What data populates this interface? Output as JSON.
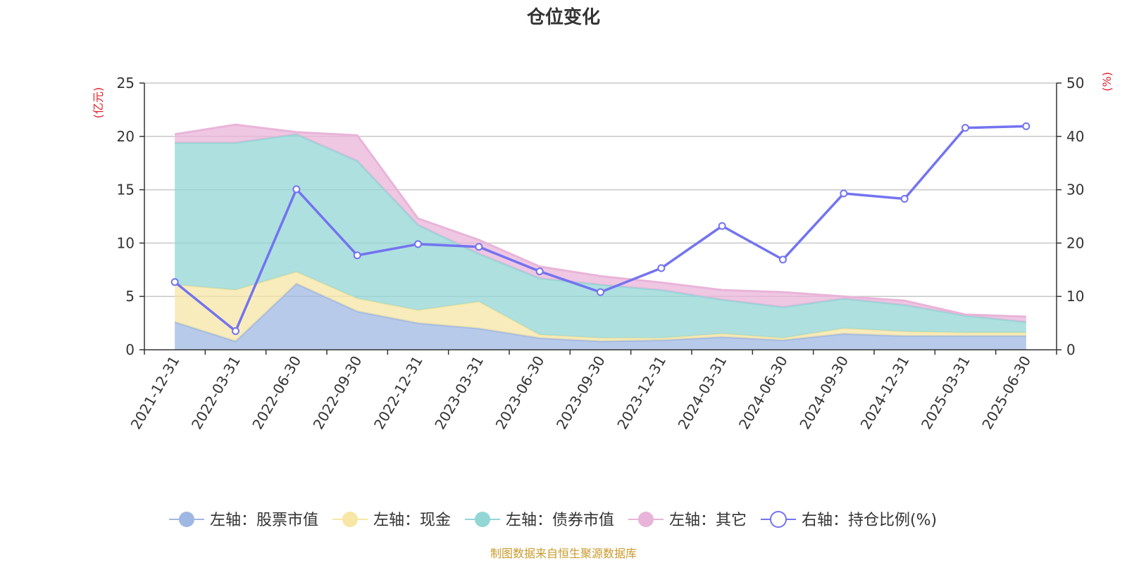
{
  "chart_data": {
    "type": "area",
    "title": "仓位变化",
    "categories": [
      "2021-12-31",
      "2022-03-31",
      "2022-06-30",
      "2022-09-30",
      "2022-12-31",
      "2023-03-31",
      "2023-06-30",
      "2023-09-30",
      "2023-12-31",
      "2024-03-31",
      "2024-06-30",
      "2024-09-30",
      "2024-12-31",
      "2025-03-31",
      "2025-06-30"
    ],
    "left_axis": {
      "unit": "(亿元)",
      "ylim": [
        0,
        25
      ],
      "ticks": [
        "0",
        "5",
        "10",
        "15",
        "20",
        "25"
      ]
    },
    "right_axis": {
      "unit": "(%)",
      "ylim": [
        0,
        50
      ],
      "ticks": [
        "0",
        "10",
        "20",
        "30",
        "40",
        "50"
      ]
    },
    "stacked": true,
    "series": [
      {
        "name": "左轴：股票市值",
        "axis": "left",
        "type": "area",
        "color": "#9fb8e3",
        "values": [
          2.6,
          0.8,
          6.2,
          3.6,
          2.5,
          2.0,
          1.1,
          0.8,
          0.9,
          1.2,
          0.9,
          1.5,
          1.3,
          1.3,
          1.3
        ]
      },
      {
        "name": "左轴：现金",
        "axis": "left",
        "type": "area",
        "color": "#f7e6a6",
        "values": [
          3.5,
          4.8,
          1.1,
          1.2,
          1.2,
          2.5,
          0.3,
          0.3,
          0.2,
          0.3,
          0.2,
          0.5,
          0.4,
          0.3,
          0.3
        ]
      },
      {
        "name": "左轴：债券市值",
        "axis": "left",
        "type": "area",
        "color": "#93d6d6",
        "values": [
          13.3,
          13.8,
          12.9,
          12.9,
          8.0,
          4.5,
          5.3,
          5.0,
          4.5,
          3.2,
          2.9,
          2.8,
          2.5,
          1.6,
          1.0
        ]
      },
      {
        "name": "左轴：其它",
        "axis": "left",
        "type": "area",
        "color": "#e9b4d9",
        "values": [
          0.8,
          1.7,
          0.2,
          2.4,
          0.6,
          1.3,
          1.1,
          0.8,
          0.7,
          0.9,
          1.4,
          0.2,
          0.4,
          0.1,
          0.5
        ]
      },
      {
        "name": "右轴：持仓比例(%)",
        "axis": "right",
        "type": "line",
        "color": "#7373f0",
        "values": [
          12.7,
          3.5,
          30.1,
          17.7,
          19.8,
          19.3,
          14.7,
          10.8,
          15.3,
          23.2,
          16.9,
          29.3,
          28.3,
          41.6,
          41.9
        ]
      }
    ],
    "grid": true,
    "legend_position": "bottom"
  },
  "source_note": "制图数据来自恒生聚源数据库"
}
